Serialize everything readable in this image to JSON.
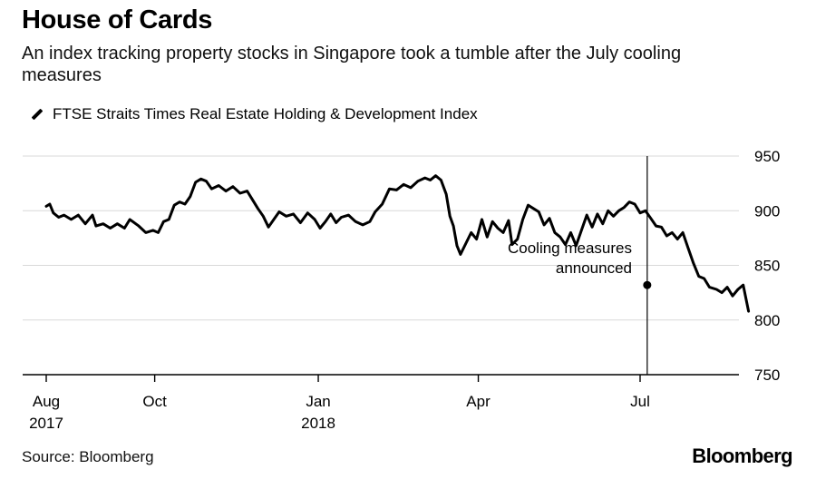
{
  "header": {
    "title": "House of Cards",
    "subtitle": "An index tracking property stocks in Singapore took a tumble after the July cooling measures"
  },
  "footer": {
    "source": "Source: Bloomberg",
    "brand": "Bloomberg"
  },
  "colors": {
    "line": "#000000",
    "grid": "#d9d9d9",
    "axis": "#000000"
  },
  "chart_data": {
    "type": "line",
    "title": "House of Cards",
    "subtitle": "An index tracking property stocks in Singapore took a tumble after the July cooling measures",
    "legend_position": "top-left",
    "grid": true,
    "y_axis_side": "right",
    "ylim": [
      750,
      950
    ],
    "yticks": [
      750,
      800,
      850,
      900,
      950
    ],
    "xlim": [
      "2017-08-01",
      "2018-08-31"
    ],
    "xticks": [
      {
        "date": "2017-08-01",
        "label": "Aug",
        "sublabel": "2017"
      },
      {
        "date": "2017-10-01",
        "label": "Oct",
        "sublabel": ""
      },
      {
        "date": "2018-01-01",
        "label": "Jan",
        "sublabel": "2018"
      },
      {
        "date": "2018-04-01",
        "label": "Apr",
        "sublabel": ""
      },
      {
        "date": "2018-07-01",
        "label": "Jul",
        "sublabel": ""
      }
    ],
    "annotation": {
      "date": "2018-07-05",
      "value": 832,
      "text_lines": [
        "Cooling measures",
        "announced"
      ]
    },
    "series": [
      {
        "name": "FTSE Straits Times Real Estate Holding & Development Index",
        "points": [
          [
            "2017-08-01",
            904
          ],
          [
            "2017-08-03",
            906
          ],
          [
            "2017-08-05",
            898
          ],
          [
            "2017-08-08",
            894
          ],
          [
            "2017-08-11",
            896
          ],
          [
            "2017-08-15",
            892
          ],
          [
            "2017-08-19",
            896
          ],
          [
            "2017-08-23",
            888
          ],
          [
            "2017-08-27",
            896
          ],
          [
            "2017-08-29",
            886
          ],
          [
            "2017-09-02",
            888
          ],
          [
            "2017-09-06",
            884
          ],
          [
            "2017-09-10",
            888
          ],
          [
            "2017-09-14",
            884
          ],
          [
            "2017-09-17",
            892
          ],
          [
            "2017-09-22",
            886
          ],
          [
            "2017-09-26",
            880
          ],
          [
            "2017-09-30",
            882
          ],
          [
            "2017-10-03",
            880
          ],
          [
            "2017-10-06",
            890
          ],
          [
            "2017-10-09",
            892
          ],
          [
            "2017-10-12",
            905
          ],
          [
            "2017-10-15",
            908
          ],
          [
            "2017-10-18",
            906
          ],
          [
            "2017-10-21",
            913
          ],
          [
            "2017-10-24",
            926
          ],
          [
            "2017-10-27",
            929
          ],
          [
            "2017-10-30",
            927
          ],
          [
            "2017-11-02",
            920
          ],
          [
            "2017-11-06",
            923
          ],
          [
            "2017-11-10",
            918
          ],
          [
            "2017-11-14",
            922
          ],
          [
            "2017-11-18",
            916
          ],
          [
            "2017-11-22",
            918
          ],
          [
            "2017-11-25",
            910
          ],
          [
            "2017-11-28",
            902
          ],
          [
            "2017-12-01",
            895
          ],
          [
            "2017-12-04",
            885
          ],
          [
            "2017-12-07",
            892
          ],
          [
            "2017-12-10",
            899
          ],
          [
            "2017-12-14",
            895
          ],
          [
            "2017-12-18",
            897
          ],
          [
            "2017-12-22",
            889
          ],
          [
            "2017-12-26",
            898
          ],
          [
            "2017-12-30",
            892
          ],
          [
            "2018-01-02",
            884
          ],
          [
            "2018-01-05",
            890
          ],
          [
            "2018-01-08",
            897
          ],
          [
            "2018-01-11",
            889
          ],
          [
            "2018-01-14",
            894
          ],
          [
            "2018-01-18",
            896
          ],
          [
            "2018-01-22",
            890
          ],
          [
            "2018-01-26",
            887
          ],
          [
            "2018-01-30",
            890
          ],
          [
            "2018-02-02",
            899
          ],
          [
            "2018-02-06",
            906
          ],
          [
            "2018-02-10",
            920
          ],
          [
            "2018-02-14",
            919
          ],
          [
            "2018-02-18",
            924
          ],
          [
            "2018-02-22",
            921
          ],
          [
            "2018-02-26",
            927
          ],
          [
            "2018-03-02",
            930
          ],
          [
            "2018-03-05",
            928
          ],
          [
            "2018-03-08",
            932
          ],
          [
            "2018-03-11",
            928
          ],
          [
            "2018-03-14",
            915
          ],
          [
            "2018-03-16",
            895
          ],
          [
            "2018-03-18",
            886
          ],
          [
            "2018-03-20",
            868
          ],
          [
            "2018-03-22",
            860
          ],
          [
            "2018-03-25",
            870
          ],
          [
            "2018-03-28",
            880
          ],
          [
            "2018-03-31",
            874
          ],
          [
            "2018-04-03",
            892
          ],
          [
            "2018-04-06",
            876
          ],
          [
            "2018-04-09",
            890
          ],
          [
            "2018-04-12",
            884
          ],
          [
            "2018-04-15",
            880
          ],
          [
            "2018-04-18",
            891
          ],
          [
            "2018-04-20",
            869
          ],
          [
            "2018-04-23",
            874
          ],
          [
            "2018-04-26",
            892
          ],
          [
            "2018-04-29",
            905
          ],
          [
            "2018-05-02",
            902
          ],
          [
            "2018-05-05",
            899
          ],
          [
            "2018-05-08",
            887
          ],
          [
            "2018-05-11",
            893
          ],
          [
            "2018-05-14",
            880
          ],
          [
            "2018-05-17",
            876
          ],
          [
            "2018-05-20",
            869
          ],
          [
            "2018-05-23",
            880
          ],
          [
            "2018-05-26",
            868
          ],
          [
            "2018-05-29",
            882
          ],
          [
            "2018-06-01",
            896
          ],
          [
            "2018-06-04",
            885
          ],
          [
            "2018-06-07",
            897
          ],
          [
            "2018-06-10",
            888
          ],
          [
            "2018-06-13",
            900
          ],
          [
            "2018-06-16",
            895
          ],
          [
            "2018-06-19",
            900
          ],
          [
            "2018-06-22",
            903
          ],
          [
            "2018-06-25",
            908
          ],
          [
            "2018-06-28",
            906
          ],
          [
            "2018-07-01",
            898
          ],
          [
            "2018-07-04",
            900
          ],
          [
            "2018-07-07",
            893
          ],
          [
            "2018-07-10",
            886
          ],
          [
            "2018-07-13",
            885
          ],
          [
            "2018-07-16",
            877
          ],
          [
            "2018-07-19",
            880
          ],
          [
            "2018-07-22",
            874
          ],
          [
            "2018-07-25",
            880
          ],
          [
            "2018-07-28",
            866
          ],
          [
            "2018-07-31",
            852
          ],
          [
            "2018-08-03",
            840
          ],
          [
            "2018-08-06",
            838
          ],
          [
            "2018-08-09",
            830
          ],
          [
            "2018-08-13",
            828
          ],
          [
            "2018-08-16",
            825
          ],
          [
            "2018-08-19",
            830
          ],
          [
            "2018-08-22",
            822
          ],
          [
            "2018-08-25",
            828
          ],
          [
            "2018-08-28",
            832
          ],
          [
            "2018-08-31",
            808
          ]
        ]
      }
    ]
  }
}
